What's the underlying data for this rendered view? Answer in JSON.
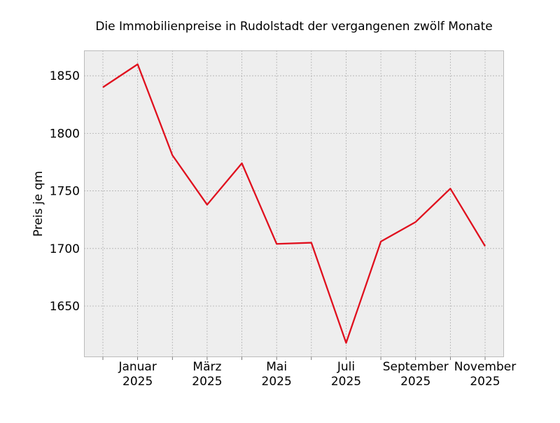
{
  "chart_data": {
    "type": "line",
    "title": "Die Immobilienpreise in Rudolstadt der vergangenen zwölf Monate",
    "xlabel": "",
    "ylabel": "Preis je qm",
    "x": [
      "2024-12",
      "2025-01",
      "2025-02",
      "2025-03",
      "2025-04",
      "2025-05",
      "2025-06",
      "2025-07",
      "2025-08",
      "2025-09",
      "2025-10",
      "2025-11"
    ],
    "series": [
      {
        "values": [
          1840,
          1860,
          1781,
          1738,
          1774,
          1704,
          1705,
          1618,
          1706,
          1723,
          1752,
          1702
        ],
        "color": "#e0101e"
      }
    ],
    "ylim": [
      1605.6,
      1872
    ],
    "yticks": [
      1650,
      1700,
      1750,
      1800,
      1850
    ],
    "xtick_labels": [
      {
        "month": "2025-01",
        "line1": "Januar",
        "line2": "2025"
      },
      {
        "month": "2025-03",
        "line1": "März",
        "line2": "2025"
      },
      {
        "month": "2025-05",
        "line1": "Mai",
        "line2": "2025"
      },
      {
        "month": "2025-07",
        "line1": "Juli",
        "line2": "2025"
      },
      {
        "month": "2025-09",
        "line1": "September",
        "line2": "2025"
      },
      {
        "month": "2025-11",
        "line1": "November",
        "line2": "2025"
      }
    ],
    "grid": true,
    "background": "#eeeeee"
  }
}
